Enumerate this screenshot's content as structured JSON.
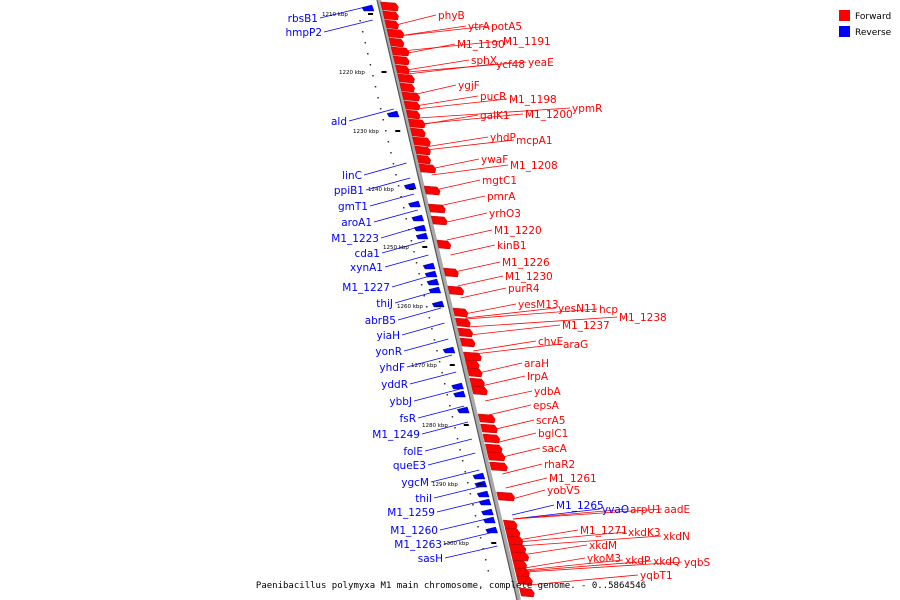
{
  "caption": "Paenibacillus polymyxa M1 main chromosome, complete genome. - 0..5864546",
  "legend": [
    {
      "label": "Forward",
      "color": "#ff0000"
    },
    {
      "label": "Reverse",
      "color": "#0000ff"
    }
  ],
  "colors": {
    "forward": "#ff0000",
    "reverse": "#0000ff",
    "backbone": "#888888"
  },
  "ticks": [
    "1210 kbp",
    "1220 kbp",
    "1230 kbp",
    "1240 kbp",
    "1250 kbp",
    "1260 kbp",
    "1270 kbp",
    "1280 kbp",
    "1290 kbp",
    "1300 kbp"
  ],
  "reverse_genes": [
    "rbsB1",
    "hmpP2",
    "ald",
    "linC",
    "ppiB1",
    "gmT1",
    "aroA1",
    "M1_1223",
    "cda1",
    "xynA1",
    "M1_1227",
    "thiJ",
    "abrB5",
    "yiaH",
    "yonR",
    "yhdF",
    "yddR",
    "ybbJ",
    "fsR",
    "M1_1249",
    "folE",
    "queE3",
    "ygcM",
    "thiI",
    "M1_1259",
    "M1_1260",
    "M1_1263",
    "sasH"
  ],
  "forward_genes": [
    "phyB",
    "ytrA",
    "potA5",
    "M1_1190",
    "M1_1191",
    "sphX",
    "ycf48",
    "yeaE",
    "ygjF",
    "pucR",
    "M1_1198",
    "galK1",
    "M1_1200",
    "ypmR",
    "yhdP",
    "mcpA1",
    "ywaF",
    "M1_1208",
    "mgtC1",
    "pmrA",
    "yrhO3",
    "M1_1220",
    "kinB1",
    "M1_1226",
    "M1_1230",
    "purR4",
    "yesM13",
    "yesN11",
    "hcp",
    "M1_1237",
    "M1_1238",
    "chvE",
    "araG",
    "araH",
    "lrpA",
    "ydbA",
    "epsA",
    "scrA5",
    "bglC1",
    "sacA",
    "rhaR2",
    "M1_1261",
    "yobV5",
    "M1_1265",
    "yvaO",
    "arpU1",
    "aadE",
    "M1_1271",
    "xkdK3",
    "xkdN",
    "xkdM",
    "ykoM3",
    "xkdP",
    "xkdQ",
    "yqbS",
    "yqbT1"
  ]
}
